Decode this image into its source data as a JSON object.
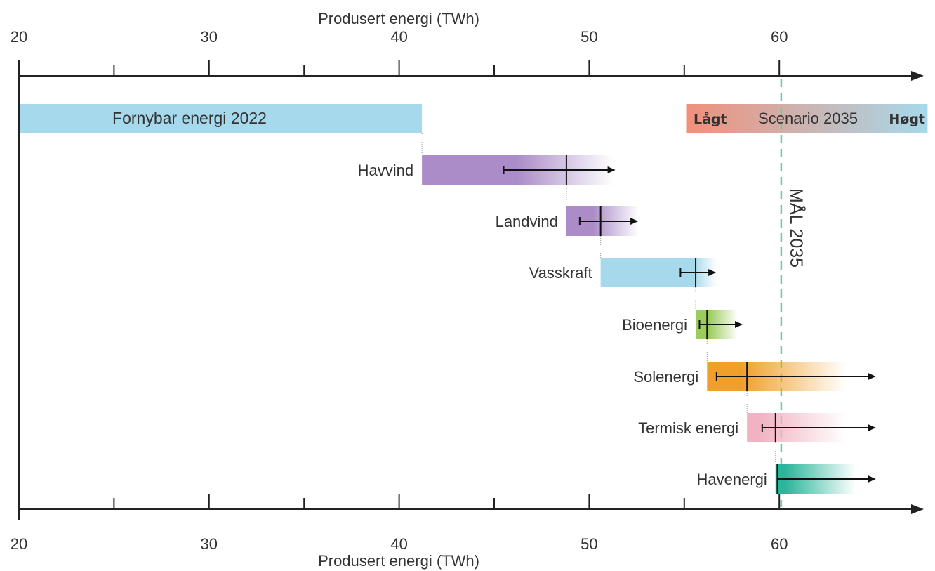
{
  "chart_data": {
    "type": "waterfall-bar",
    "axis_title_top": "Produsert energi (TWh)",
    "axis_title_bottom": "Produsert energi (TWh)",
    "xlim": [
      20,
      67.8
    ],
    "major_ticks": [
      20,
      30,
      40,
      50,
      60
    ],
    "tick_labels": [
      "20",
      "30",
      "40",
      "50",
      "60"
    ],
    "minor_ticks": [
      25,
      35,
      45,
      55
    ],
    "baseline": {
      "label": "Fornybar energi 2022",
      "start": 20,
      "end": 41.2,
      "color": "#a6d9eb"
    },
    "scenario": {
      "label": "Scenario 2035",
      "low_label": "Lågt",
      "high_label": "Høgt",
      "start": 55.1,
      "end": 67.8,
      "color_low": "#f0907a",
      "color_high": "#a6d9eb"
    },
    "goal": {
      "label": "MÅL 2035",
      "value": 60.1,
      "color": "#6ccf9f"
    },
    "series": [
      {
        "name": "Havvind",
        "start": 41.2,
        "solid_end": 46.2,
        "fade_end": 51.3,
        "marker": 48.8,
        "whisker_low": 45.5,
        "whisker_high": 51.3,
        "color": "#ab8cc8"
      },
      {
        "name": "Landvind",
        "start": 48.8,
        "solid_end": 50.2,
        "fade_end": 52.6,
        "marker": 50.6,
        "whisker_low": 49.5,
        "whisker_high": 52.5,
        "color": "#ab8cc8"
      },
      {
        "name": "Vasskraft",
        "start": 50.6,
        "solid_end": 55.5,
        "fade_end": 56.7,
        "marker": 55.6,
        "whisker_low": 54.8,
        "whisker_high": 56.6,
        "color": "#a6d9eb"
      },
      {
        "name": "Bioenergi",
        "start": 55.6,
        "solid_end": 56.3,
        "fade_end": 57.8,
        "marker": 56.2,
        "whisker_low": 55.8,
        "whisker_high": 58.0,
        "color": "#9ccc5c"
      },
      {
        "name": "Solenergi",
        "start": 56.2,
        "solid_end": 58.0,
        "fade_end": 63.5,
        "marker": 58.3,
        "whisker_low": 56.7,
        "whisker_high": 65.0,
        "color": "#f0a02a"
      },
      {
        "name": "Termisk energi",
        "start": 58.3,
        "solid_end": 59.0,
        "fade_end": 63.5,
        "marker": 59.8,
        "whisker_low": 59.1,
        "whisker_high": 65.0,
        "color": "#f1b3c3"
      },
      {
        "name": "Havenergi",
        "start": 59.8,
        "solid_end": 60.3,
        "fade_end": 64.0,
        "marker": 59.9,
        "whisker_low": 59.9,
        "whisker_high": 65.0,
        "color": "#2bb59b"
      }
    ]
  }
}
